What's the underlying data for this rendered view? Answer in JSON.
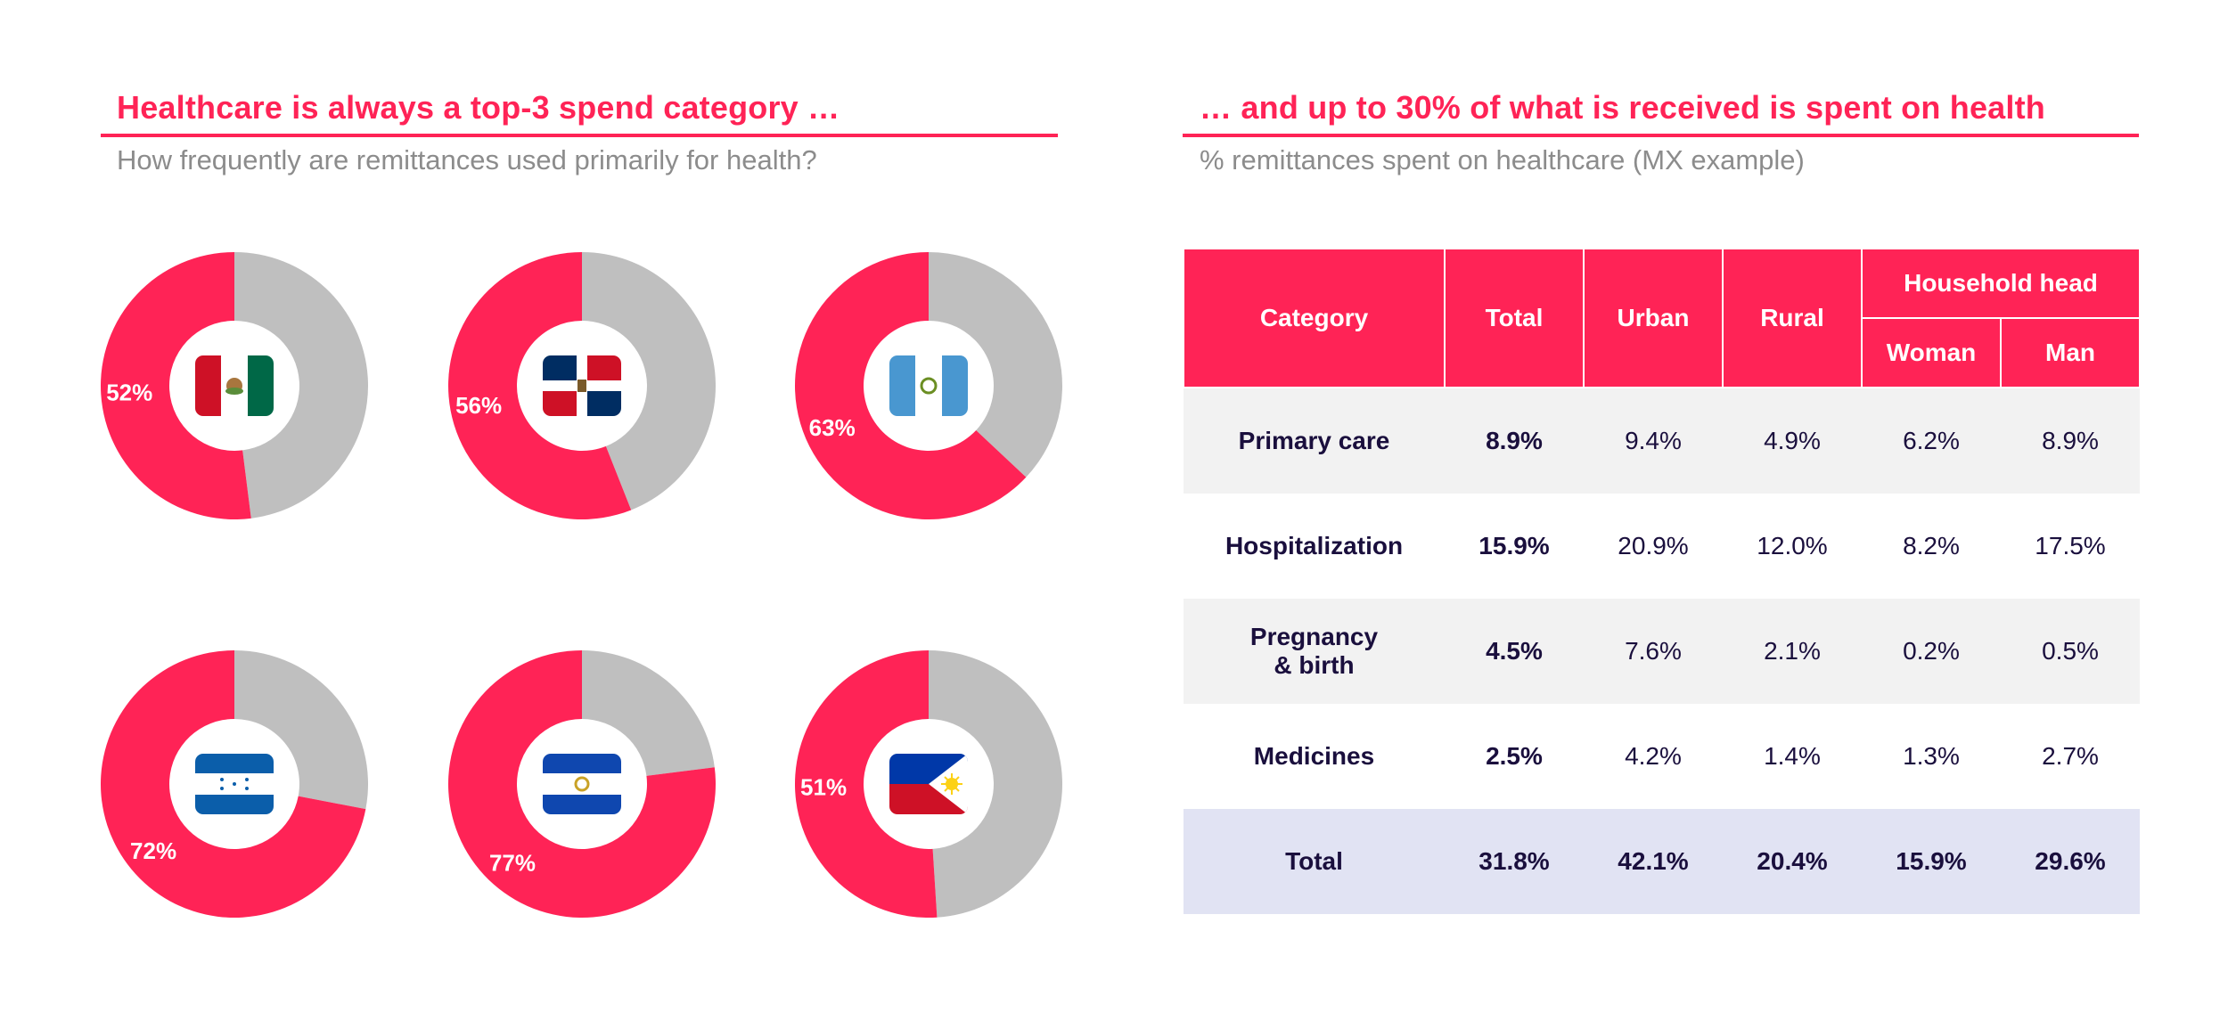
{
  "left": {
    "title": "Healthcare is always a top-3 spend category …",
    "subtitle": "How frequently are remittances used primarily for health?"
  },
  "right": {
    "title": "… and up to 30% of what is received is spent on health",
    "subtitle": "% remittances spent on healthcare (MX example)"
  },
  "colors": {
    "accent": "#ff2356",
    "grey": "#bfbfbf",
    "text": "#1a0f3d",
    "total_row": "#e1e3f3",
    "shaded_row": "#f2f2f2"
  },
  "chart_data": [
    {
      "type": "pie",
      "title": "How frequently are remittances used primarily for health?",
      "donuts": [
        {
          "country": "Mexico",
          "flag_icon": "mexico-flag-icon",
          "value": 52,
          "label": "52%"
        },
        {
          "country": "Dominican Republic",
          "flag_icon": "dominican-republic-flag-icon",
          "value": 56,
          "label": "56%"
        },
        {
          "country": "Guatemala",
          "flag_icon": "guatemala-flag-icon",
          "value": 63,
          "label": "63%"
        },
        {
          "country": "Honduras",
          "flag_icon": "honduras-flag-icon",
          "value": 72,
          "label": "72%"
        },
        {
          "country": "El Salvador",
          "flag_icon": "el-salvador-flag-icon",
          "value": 77,
          "label": "77%"
        },
        {
          "country": "Philippines",
          "flag_icon": "philippines-flag-icon",
          "value": 51,
          "label": "51%"
        }
      ]
    },
    {
      "type": "table",
      "title": "% remittances spent on healthcare (MX example)",
      "headers": {
        "category": "Category",
        "total": "Total",
        "urban": "Urban",
        "rural": "Rural",
        "household_head": "Household head",
        "woman": "Woman",
        "man": "Man"
      },
      "rows": [
        {
          "category": "Primary care",
          "values": [
            "8.9%",
            "9.4%",
            "4.9%",
            "6.2%",
            "8.9%"
          ]
        },
        {
          "category": "Hospitalization",
          "values": [
            "15.9%",
            "20.9%",
            "12.0%",
            "8.2%",
            "17.5%"
          ]
        },
        {
          "category": "Pregnancy & birth",
          "values": [
            "4.5%",
            "7.6%",
            "2.1%",
            "0.2%",
            "0.5%"
          ]
        },
        {
          "category": "Medicines",
          "values": [
            "2.5%",
            "4.2%",
            "1.4%",
            "1.3%",
            "2.7%"
          ]
        },
        {
          "category": "Total",
          "values": [
            "31.8%",
            "42.1%",
            "20.4%",
            "15.9%",
            "29.6%"
          ]
        }
      ]
    }
  ]
}
